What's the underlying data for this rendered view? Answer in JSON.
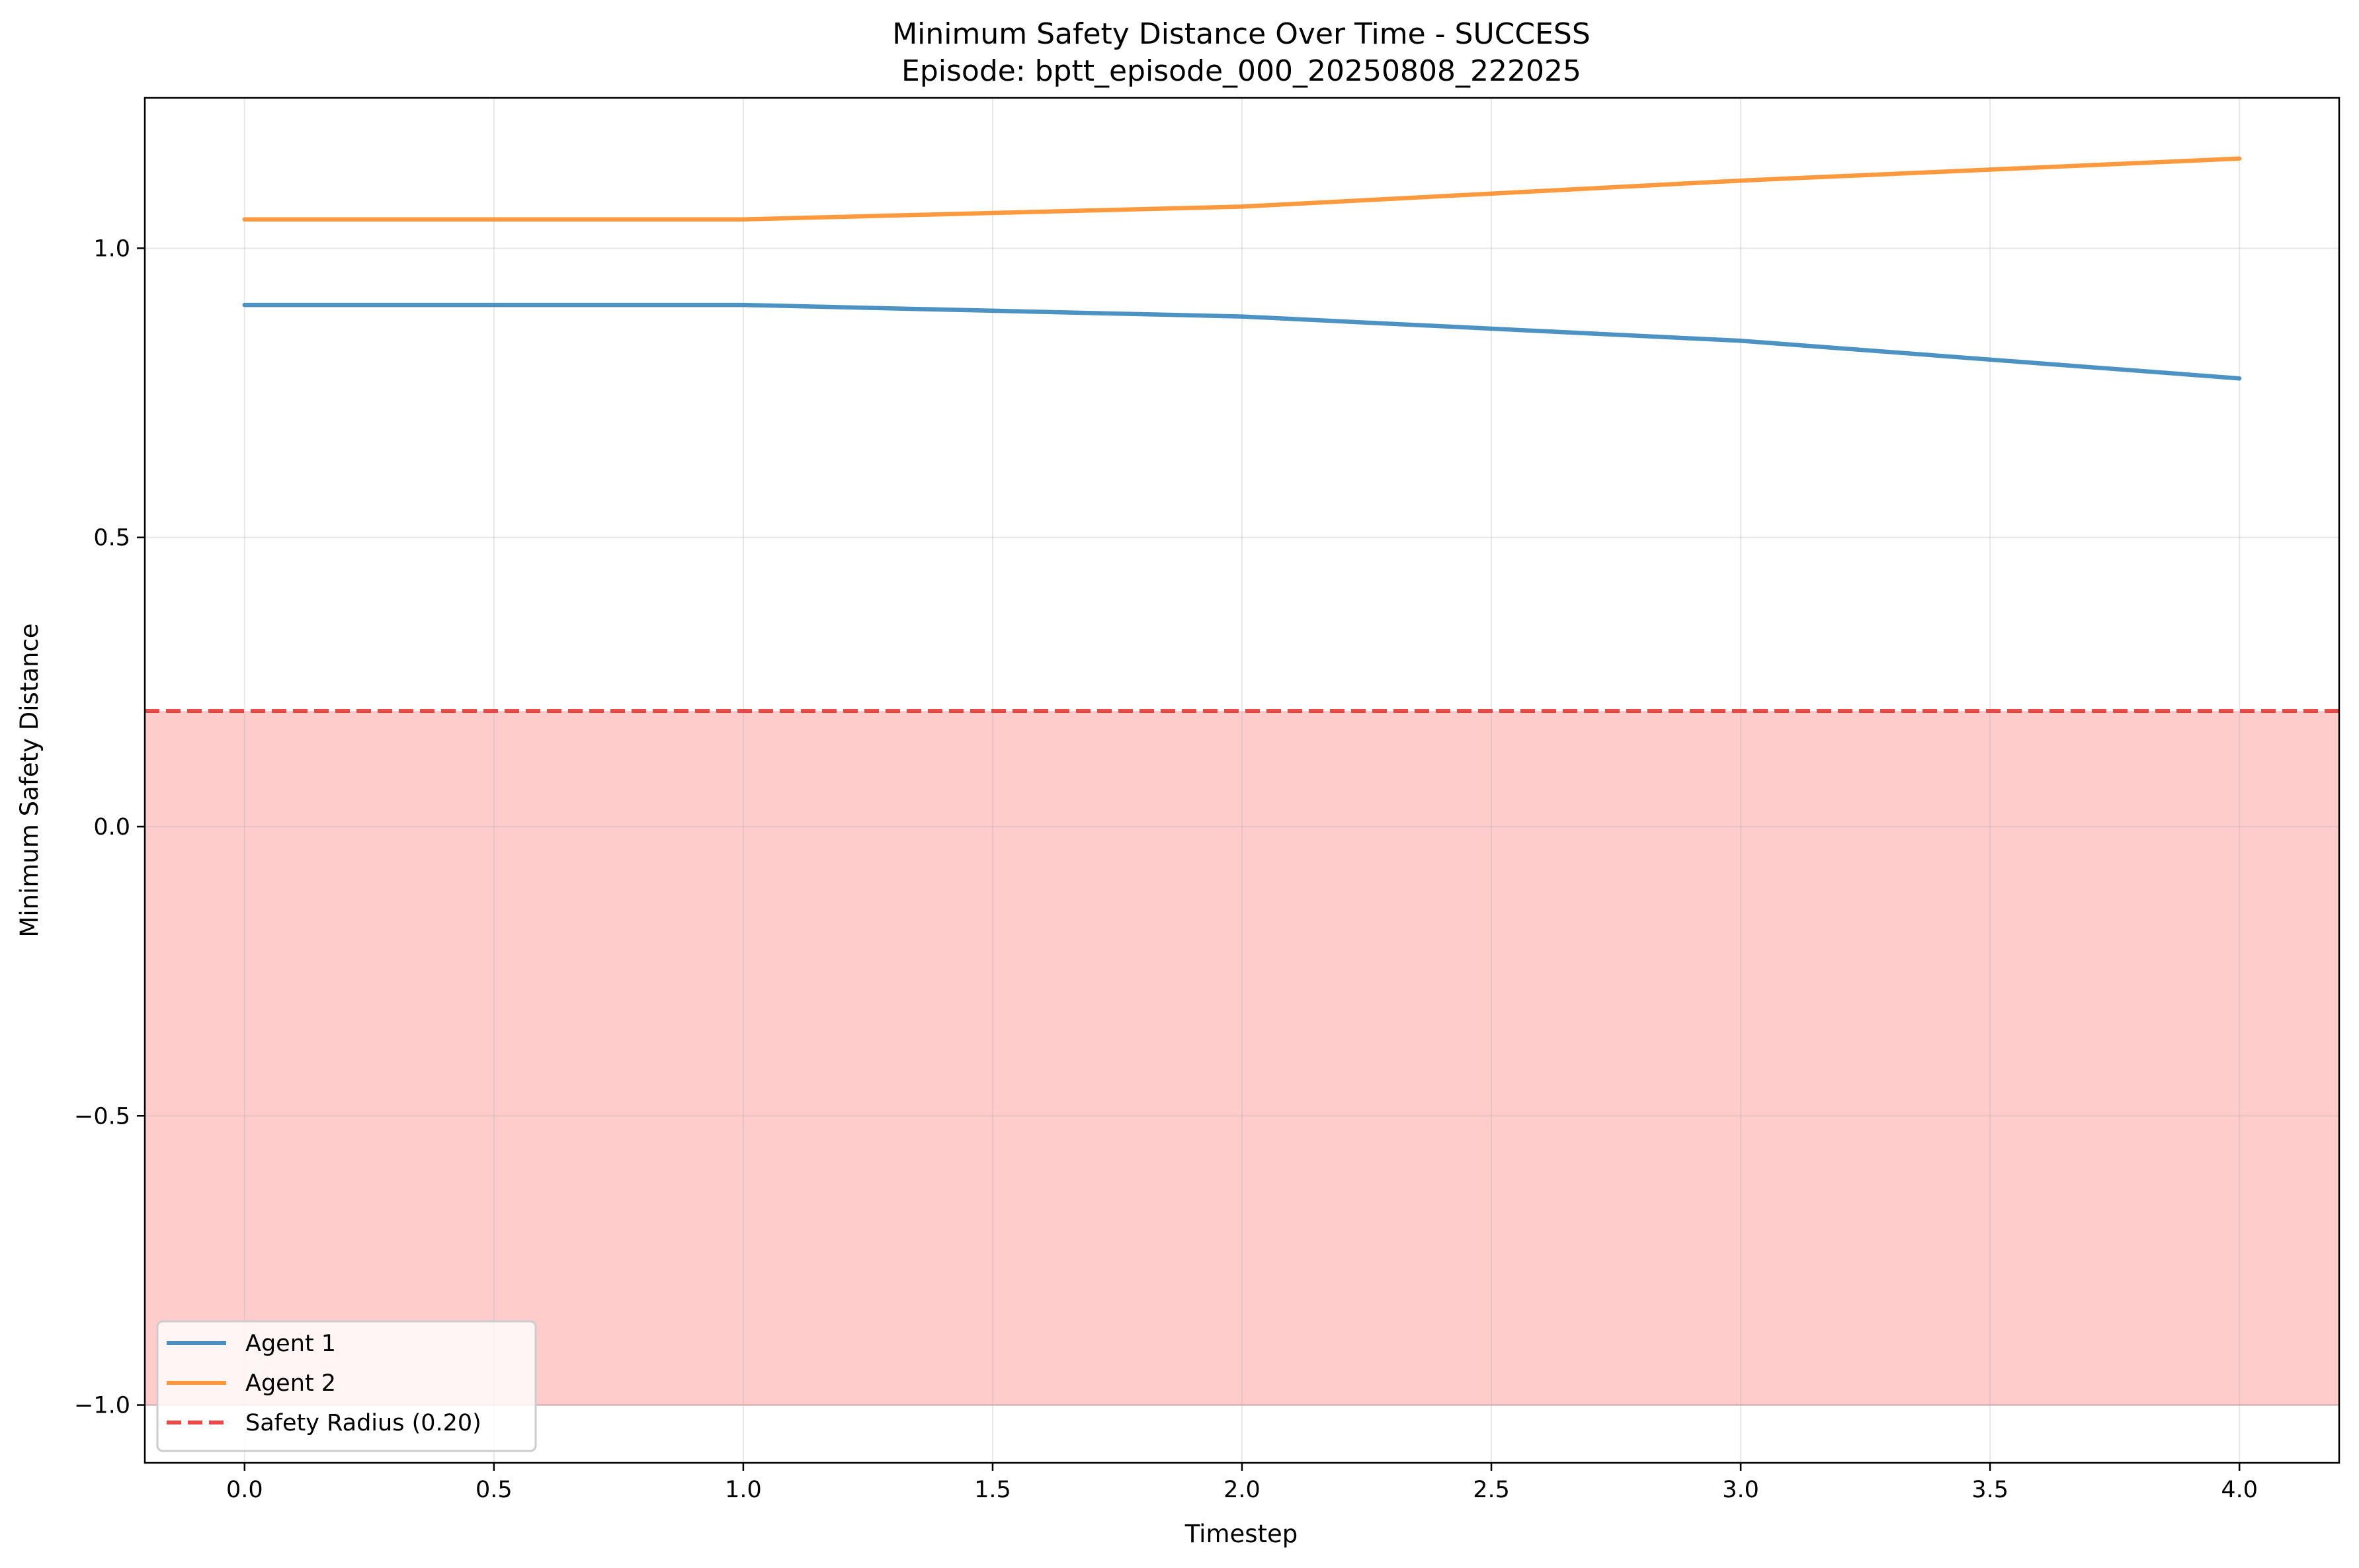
{
  "chart_data": {
    "type": "line",
    "title": "Minimum Safety Distance Over Time - SUCCESS",
    "subtitle": "Episode: bptt_episode_000_20250808_222025",
    "xlabel": "Timestep",
    "ylabel": "Minimum Safety Distance",
    "xlim": [
      -0.2,
      4.2
    ],
    "ylim": [
      -1.1,
      1.26
    ],
    "xticks": [
      0.0,
      0.5,
      1.0,
      1.5,
      2.0,
      2.5,
      3.0,
      3.5,
      4.0
    ],
    "xtick_labels": [
      "0.0",
      "0.5",
      "1.0",
      "1.5",
      "2.0",
      "2.5",
      "3.0",
      "3.5",
      "4.0"
    ],
    "yticks": [
      1.0,
      0.5,
      0.0,
      -0.5,
      -1.0
    ],
    "ytick_labels": [
      "1.0",
      "0.5",
      "0.0",
      "−0.5",
      "−1.0"
    ],
    "grid": true,
    "legend_position": "lower-left",
    "x": [
      0,
      1,
      2,
      3,
      4
    ],
    "series": [
      {
        "name": "Agent 1",
        "color": "#1f77b4",
        "values": [
          0.902,
          0.902,
          0.882,
          0.84,
          0.775
        ]
      },
      {
        "name": "Agent 2",
        "color": "#ff7f0e",
        "values": [
          1.05,
          1.05,
          1.072,
          1.117,
          1.155
        ]
      }
    ],
    "reference_line": {
      "name": "Safety Radius (0.20)",
      "y": 0.2,
      "color": "#e53935",
      "style": "dashed"
    },
    "shaded_region": {
      "y_from": -1.0,
      "y_to": 0.2,
      "color": "#ff0000",
      "opacity": 0.2
    }
  }
}
